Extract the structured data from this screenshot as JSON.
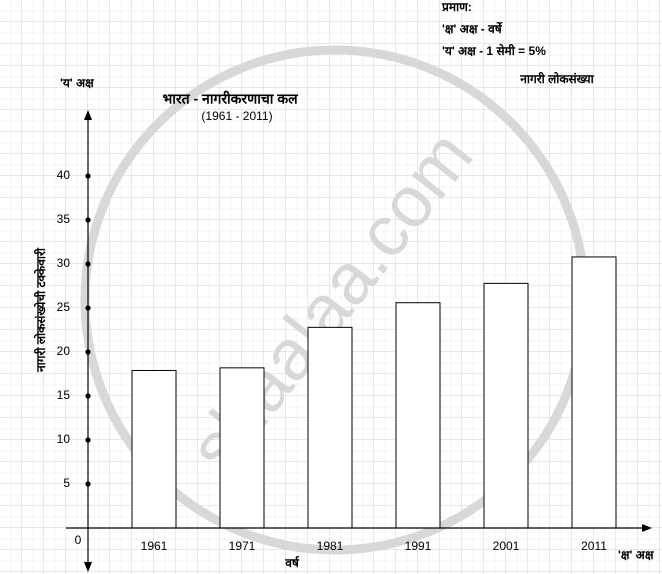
{
  "chart_data": {
    "type": "bar",
    "title": "भारत - नागरीकरणाचा कल",
    "subtitle": "(1961 - 2011)",
    "y_axis_name": "'य' अक्ष",
    "x_axis_name": "'क्ष' अक्ष",
    "ylabel": "नागरी लोकसंख्येची टक्केवारी",
    "xlabel": "वर्ष",
    "scale": [
      "प्रमाण:",
      "'क्ष' अक्ष - वर्षे",
      "'य' अक्ष - 1 सेमी = 5%"
    ],
    "legend_label": "नागरी लोकसंख्या",
    "watermark": "shaalaa.com",
    "categories": [
      "1961",
      "1971",
      "1981",
      "1991",
      "2001",
      "2011"
    ],
    "values": [
      17.9,
      18.2,
      22.8,
      25.6,
      27.8,
      30.8
    ],
    "color": "#ffffff",
    "ylim": [
      0,
      47
    ],
    "yticks": [
      0,
      5,
      10,
      15,
      20,
      25,
      30,
      35,
      40
    ],
    "grid": true
  }
}
